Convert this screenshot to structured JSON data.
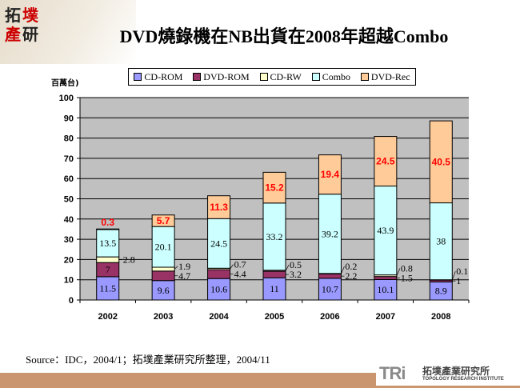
{
  "header": {
    "title": "DVD燒錄機在NB出貨在2008年超越Combo",
    "logo_chars": [
      "拓",
      "墣",
      "產",
      "研"
    ]
  },
  "footer": {
    "source": "Source：IDC，2004/1；拓墣產業研究所整理，2004/11",
    "brand_mark": "TRi",
    "brand_cn": "拓墣產業研究所",
    "brand_en": "TOPOLOGY RESEARCH INSTITUTE"
  },
  "chart_data": {
    "type": "bar",
    "stacked": true,
    "ylabel": "百萬台)",
    "ylim": [
      0,
      100
    ],
    "yticks": [
      0,
      10,
      20,
      30,
      40,
      50,
      60,
      70,
      80,
      90,
      100
    ],
    "grid": true,
    "legend_placement": "top",
    "categories": [
      "2002",
      "2003",
      "2004",
      "2005",
      "2006",
      "2007",
      "2008"
    ],
    "series": [
      {
        "name": "CD-ROM",
        "color": "#9999ff",
        "label_color": "#000000",
        "values": [
          11.5,
          9.6,
          10.6,
          11,
          10.7,
          10.1,
          8.9
        ]
      },
      {
        "name": "DVD-ROM",
        "color": "#993366",
        "label_color": "#000000",
        "values": [
          7,
          4.7,
          4.4,
          3.2,
          2.2,
          1.5,
          1
        ]
      },
      {
        "name": "CD-RW",
        "color": "#ffffcc",
        "label_color": "#000000",
        "values": [
          2.8,
          1.9,
          0.7,
          0.5,
          0.2,
          0.8,
          0.1
        ]
      },
      {
        "name": "Combo",
        "color": "#ccffff",
        "label_color": "#000000",
        "values": [
          13.5,
          20.1,
          24.5,
          33.2,
          39.2,
          43.9,
          38
        ]
      },
      {
        "name": "DVD-Rec",
        "color": "#ffcc99",
        "label_color": "#ff0000",
        "values": [
          0.3,
          5.7,
          11.3,
          15.2,
          19.4,
          24.5,
          40.5
        ]
      }
    ]
  }
}
